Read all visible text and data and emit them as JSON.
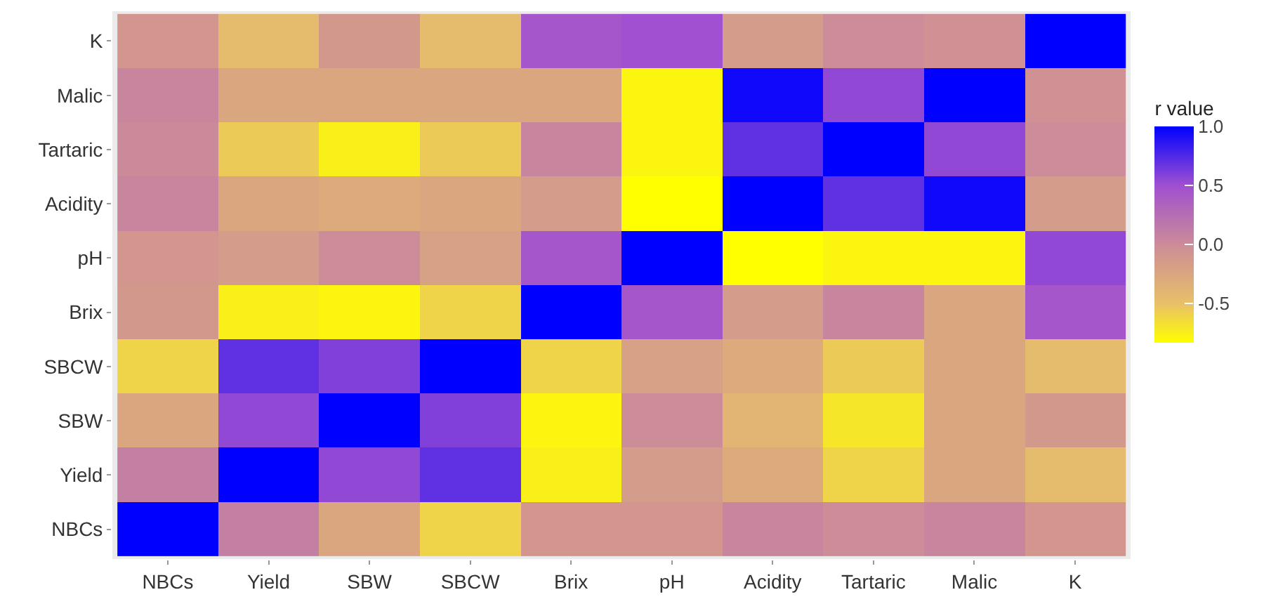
{
  "chart_data": {
    "type": "heatmap",
    "clabel": "r value",
    "categories": [
      "NBCs",
      "Yield",
      "SBW",
      "SBCW",
      "Brix",
      "pH",
      "Acidity",
      "Tartaric",
      "Malic",
      "K"
    ],
    "y_categories": [
      "K",
      "Malic",
      "Tartaric",
      "Acidity",
      "pH",
      "Brix",
      "SBCW",
      "SBW",
      "Yield",
      "NBCs"
    ],
    "cells": [
      [
        -0.1,
        -0.45,
        -0.12,
        -0.45,
        0.45,
        0.5,
        -0.15,
        0.0,
        -0.05,
        1
      ],
      [
        0.05,
        -0.25,
        -0.25,
        -0.25,
        -0.25,
        -0.78,
        0.95,
        0.55,
        1,
        -0.05
      ],
      [
        0.02,
        -0.55,
        -0.75,
        -0.55,
        0.05,
        -0.78,
        0.7,
        1,
        0.55,
        0.0
      ],
      [
        0.05,
        -0.25,
        -0.3,
        -0.25,
        -0.15,
        -0.83,
        1,
        0.7,
        0.95,
        -0.15
      ],
      [
        -0.1,
        -0.15,
        0.0,
        -0.2,
        0.45,
        1,
        -0.83,
        -0.78,
        -0.78,
        0.55
      ],
      [
        -0.12,
        -0.75,
        -0.78,
        -0.6,
        1,
        0.45,
        -0.15,
        0.05,
        -0.25,
        0.45
      ],
      [
        -0.6,
        0.7,
        0.6,
        1,
        -0.6,
        -0.2,
        -0.3,
        -0.55,
        -0.25,
        -0.45
      ],
      [
        -0.25,
        0.55,
        1,
        0.6,
        -0.78,
        0.0,
        -0.4,
        -0.7,
        -0.25,
        -0.12
      ],
      [
        0.1,
        1,
        0.55,
        0.7,
        -0.75,
        -0.15,
        -0.3,
        -0.6,
        -0.25,
        -0.45
      ],
      [
        1,
        0.1,
        -0.25,
        -0.6,
        -0.1,
        -0.1,
        0.05,
        0.0,
        0.05,
        -0.1
      ]
    ],
    "clim": [
      -0.83,
      1.0
    ],
    "cticks": [
      -0.5,
      {
        "value": 0,
        "label": "0.0"
      },
      0.5,
      {
        "value": 1,
        "label": "1.0"
      }
    ]
  }
}
